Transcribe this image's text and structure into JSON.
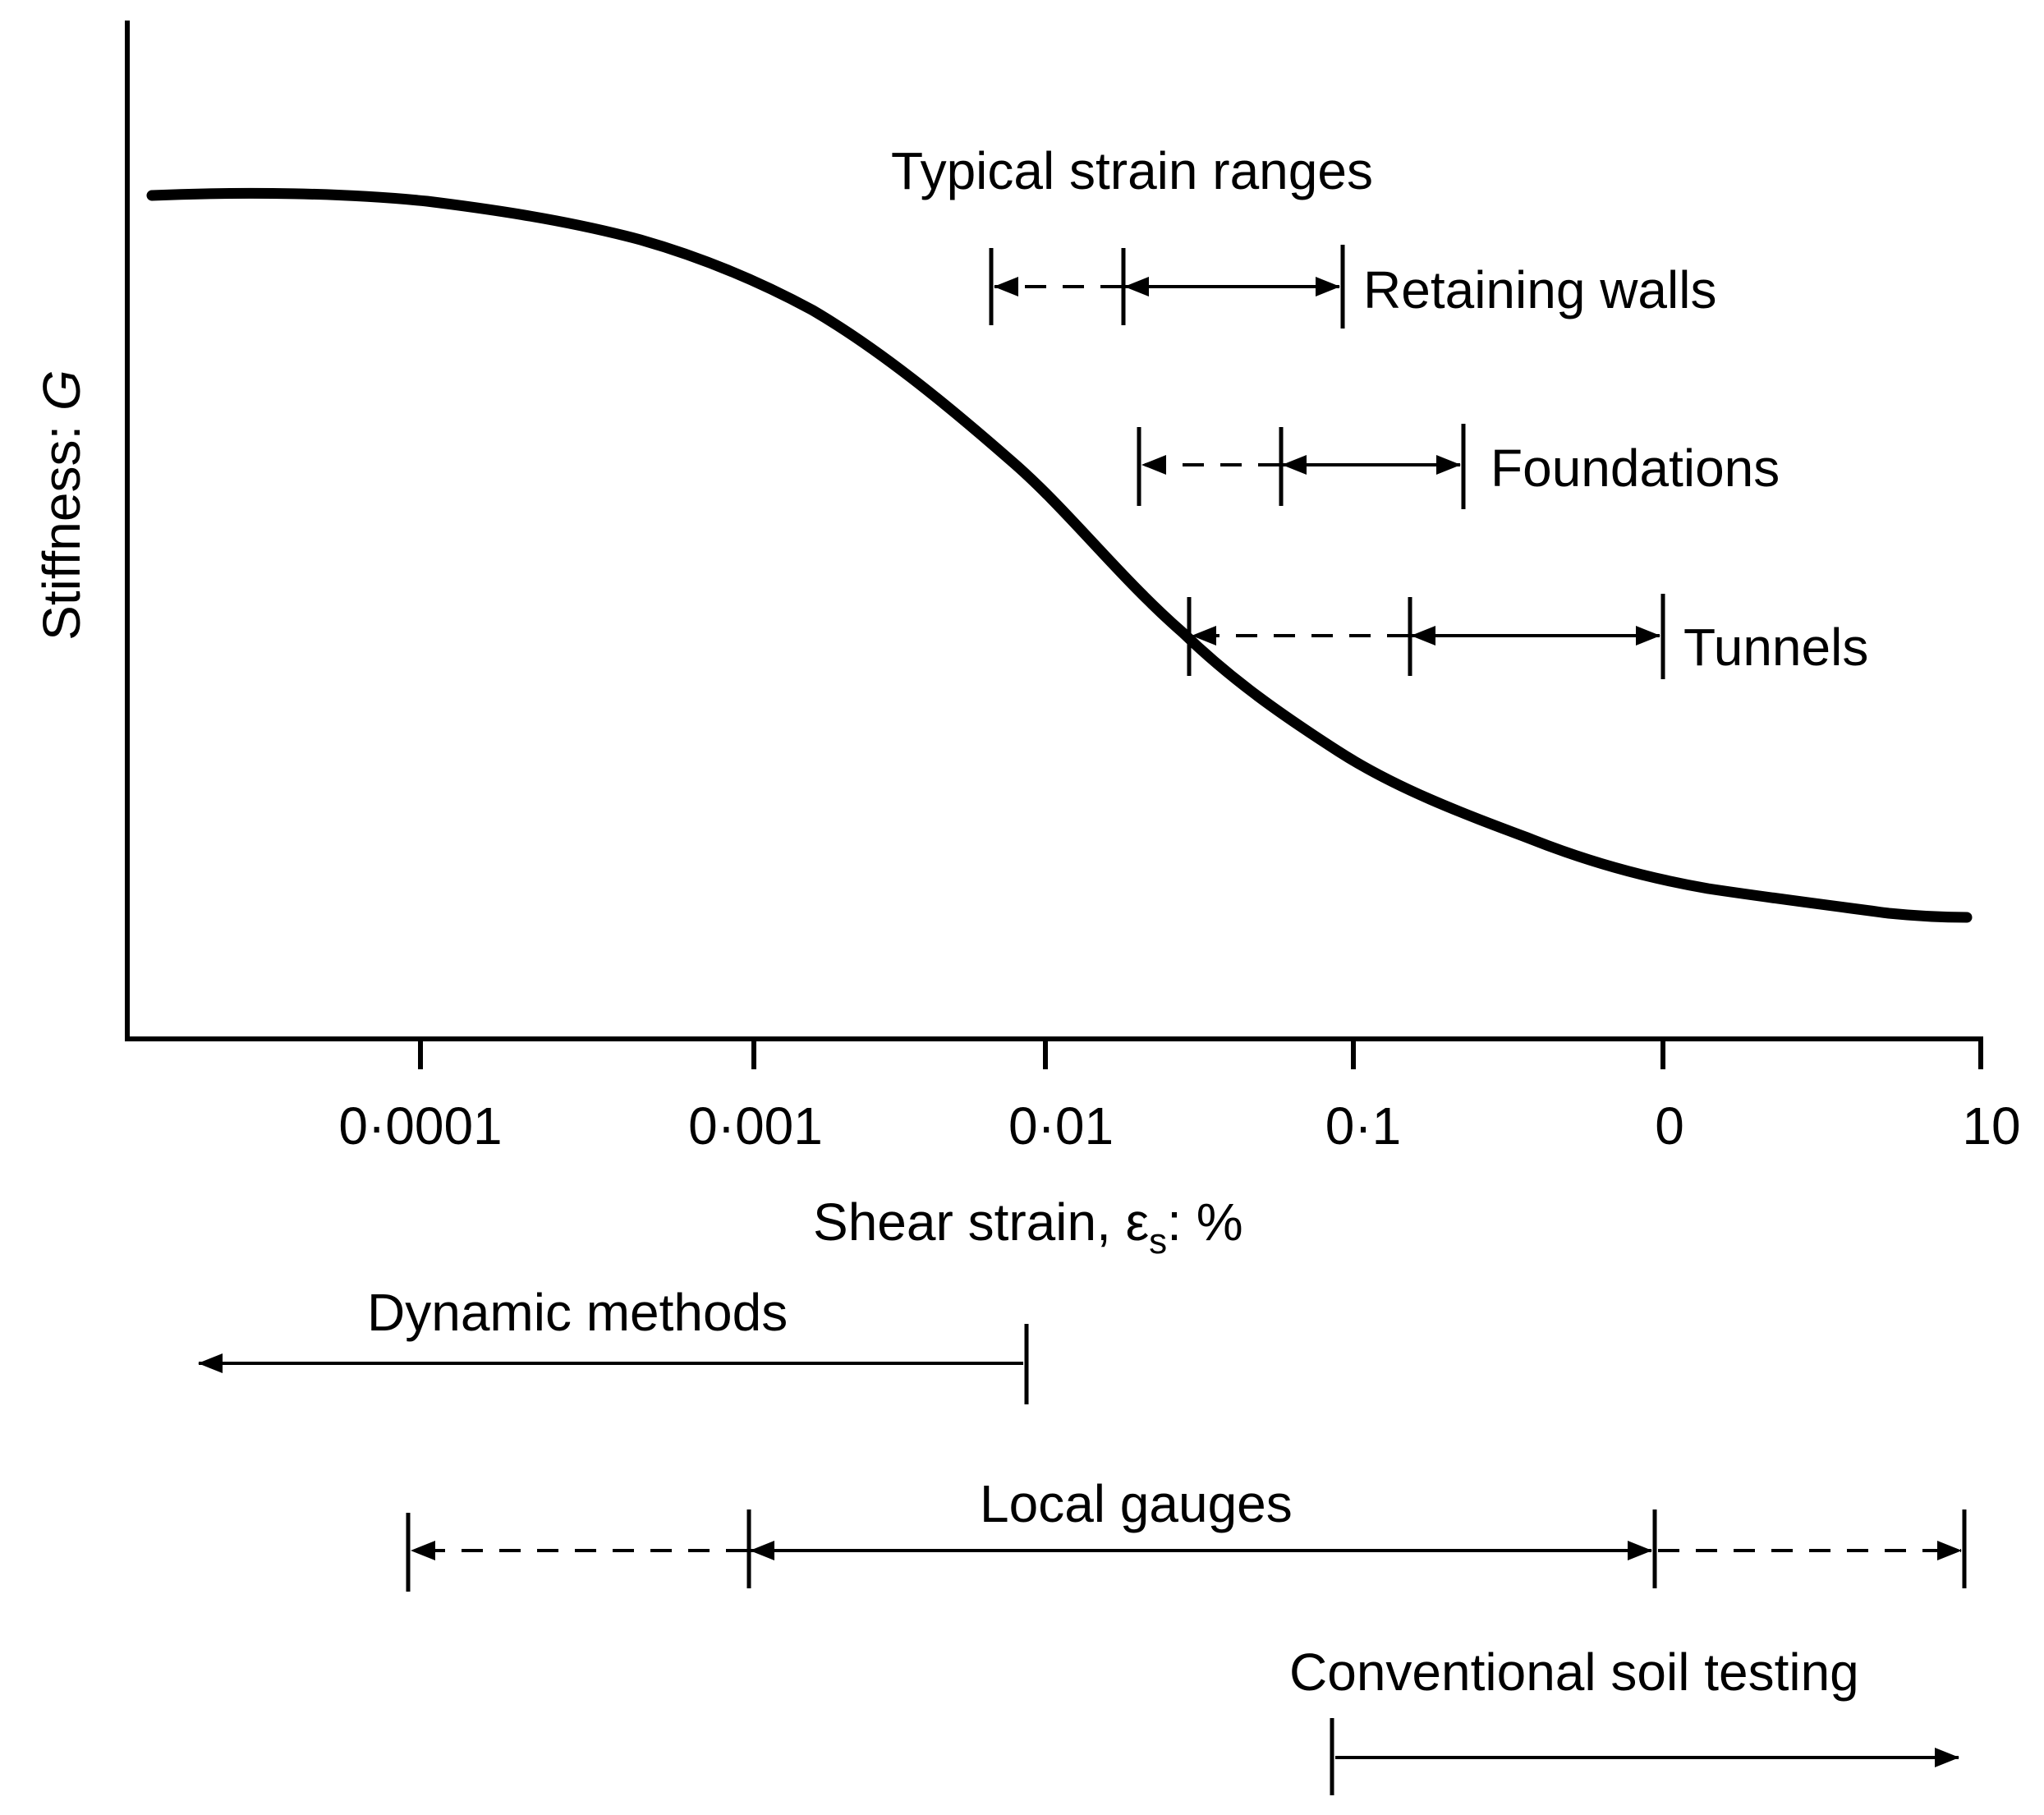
{
  "diagram": {
    "y_axis_label": "Stiffness: ",
    "y_axis_symbol": "G",
    "x_axis_label_prefix": "Shear strain, ε",
    "x_axis_label_subscript": "s",
    "x_axis_label_suffix": ": %",
    "x_ticks": [
      "0·0001",
      "0·001",
      "0·01",
      "0·1",
      "0",
      "10"
    ],
    "section_title": "Typical strain ranges",
    "strain_ranges": [
      {
        "label": "Retaining walls"
      },
      {
        "label": "Foundations"
      },
      {
        "label": "Tunnels"
      }
    ],
    "testing_methods": [
      {
        "label": "Dynamic methods"
      },
      {
        "label": "Local gauges"
      },
      {
        "label": "Conventional soil testing"
      }
    ]
  }
}
